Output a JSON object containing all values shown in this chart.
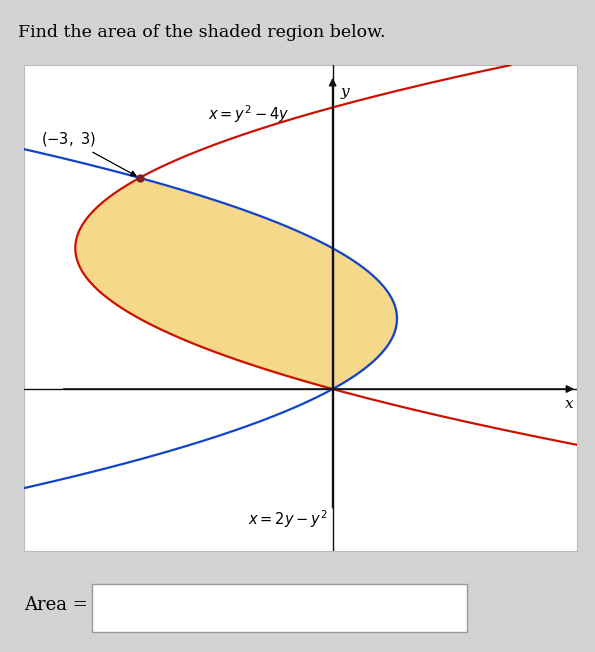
{
  "title": "Find the area of the shaded region below.",
  "title_fontsize": 12.5,
  "background_outer": "#d3d3d3",
  "background_plot": "#ffffff",
  "curve1_label": "$x = y^2 - 4y$",
  "curve2_label": "$x = 2y - y^2$",
  "point_label": "$(-3,\\ 3)$",
  "point_x": -3,
  "point_y": 3,
  "intersection_y_low": 0,
  "intersection_y_high": 3,
  "shaded_color": "#f5d88a",
  "curve1_color": "#cc1100",
  "curve2_color": "#1144cc",
  "point_color": "#7a2020",
  "axis_color": "#111111",
  "area_label": "Area =",
  "xlabel": "x",
  "ylabel": "y",
  "y_range": [
    -2.3,
    4.6
  ],
  "x_range": [
    -4.8,
    3.8
  ],
  "y_axis_x": 0.0,
  "x_axis_y": 0.0
}
